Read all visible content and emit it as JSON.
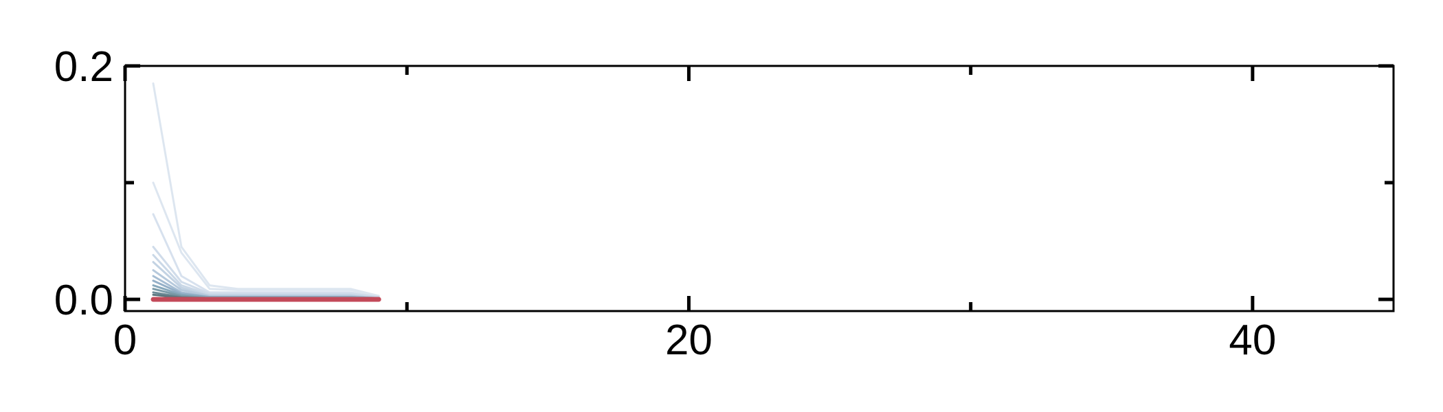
{
  "chart_data": {
    "type": "line",
    "title": "",
    "xlabel": "",
    "ylabel": "",
    "xlim": [
      0,
      45
    ],
    "ylim": [
      -0.01,
      0.2
    ],
    "x_ticks": [
      0,
      20,
      40
    ],
    "x_tick_labels": [
      "0",
      "20",
      "40"
    ],
    "x_minor_ticks": [
      10,
      30
    ],
    "y_ticks": [
      0.0,
      0.2
    ],
    "y_tick_labels": [
      "0.0",
      "0.2"
    ],
    "y_minor_ticks": [
      0.1
    ],
    "grid": false,
    "legend": "none",
    "series": [
      {
        "color": "#dde6f0",
        "x": [
          1,
          2,
          3,
          4,
          5,
          6,
          7,
          8,
          9
        ],
        "y": [
          0.185,
          0.045,
          0.012,
          0.009,
          0.009,
          0.009,
          0.009,
          0.009,
          0.003
        ]
      },
      {
        "color": "#dde6f0",
        "x": [
          1,
          2,
          3,
          4,
          5,
          6,
          7,
          8,
          9
        ],
        "y": [
          0.1,
          0.04,
          0.009,
          0.008,
          0.008,
          0.008,
          0.008,
          0.008,
          0.003
        ]
      },
      {
        "color": "#d7e1ee",
        "x": [
          1,
          2,
          3,
          4,
          5,
          6,
          7,
          8,
          9
        ],
        "y": [
          0.073,
          0.02,
          0.006,
          0.006,
          0.006,
          0.006,
          0.006,
          0.006,
          0.002
        ]
      },
      {
        "color": "#d0dcea",
        "x": [
          1,
          2,
          3,
          4,
          5,
          6,
          7,
          8,
          9
        ],
        "y": [
          0.045,
          0.015,
          0.005,
          0.005,
          0.005,
          0.005,
          0.005,
          0.005,
          0.002
        ]
      },
      {
        "color": "#cad8e7",
        "x": [
          1,
          2,
          3,
          4,
          5,
          6,
          7,
          8,
          9
        ],
        "y": [
          0.038,
          0.012,
          0.004,
          0.004,
          0.004,
          0.004,
          0.004,
          0.004,
          0.002
        ]
      },
      {
        "color": "#c3d3e3",
        "x": [
          1,
          2,
          3,
          4,
          5,
          6,
          7,
          8,
          9
        ],
        "y": [
          0.032,
          0.01,
          0.003,
          0.003,
          0.003,
          0.003,
          0.003,
          0.003,
          0.001
        ]
      },
      {
        "color": "#b6c9dc",
        "x": [
          1,
          2,
          3,
          4,
          5,
          6,
          7,
          8,
          9
        ],
        "y": [
          0.025,
          0.008,
          0.003,
          0.003,
          0.003,
          0.003,
          0.003,
          0.003,
          0.001
        ]
      },
      {
        "color": "#a6bdd3",
        "x": [
          1,
          2,
          3,
          4,
          5,
          6,
          7,
          8,
          9
        ],
        "y": [
          0.02,
          0.006,
          0.002,
          0.002,
          0.002,
          0.002,
          0.002,
          0.002,
          0.001
        ]
      },
      {
        "color": "#95b0c8",
        "x": [
          1,
          2,
          3,
          4,
          5,
          6,
          7,
          8,
          9
        ],
        "y": [
          0.016,
          0.005,
          0.002,
          0.002,
          0.002,
          0.002,
          0.002,
          0.002,
          0.001
        ]
      },
      {
        "color": "#87a8bc",
        "x": [
          1,
          2,
          3,
          4,
          5,
          6,
          7,
          8,
          9
        ],
        "y": [
          0.012,
          0.004,
          0.002,
          0.002,
          0.002,
          0.002,
          0.002,
          0.002,
          0.001
        ]
      },
      {
        "color": "#7a9aa8",
        "x": [
          1,
          2,
          3,
          4,
          5,
          6,
          7,
          8,
          9
        ],
        "y": [
          0.009,
          0.003,
          0.001,
          0.001,
          0.001,
          0.001,
          0.001,
          0.001,
          0.001
        ]
      },
      {
        "color": "#6c8a96",
        "x": [
          1,
          2,
          3,
          4,
          5,
          6,
          7,
          8,
          9
        ],
        "y": [
          0.006,
          0.002,
          0.001,
          0.001,
          0.001,
          0.001,
          0.001,
          0.001,
          0.0
        ]
      },
      {
        "color": "#5d7880",
        "x": [
          1,
          2,
          3,
          4,
          5,
          6,
          7,
          8,
          9
        ],
        "y": [
          0.004,
          0.0015,
          0.0008,
          0.0008,
          0.0008,
          0.0008,
          0.0008,
          0.0008,
          0.0
        ]
      },
      {
        "color": "#c34a59",
        "x": [
          1,
          2,
          3,
          4,
          5,
          6,
          7,
          8,
          9
        ],
        "y": [
          0.0,
          0.0,
          0.0,
          0.0,
          0.0,
          0.0,
          0.0,
          0.0,
          0.0
        ]
      }
    ]
  }
}
